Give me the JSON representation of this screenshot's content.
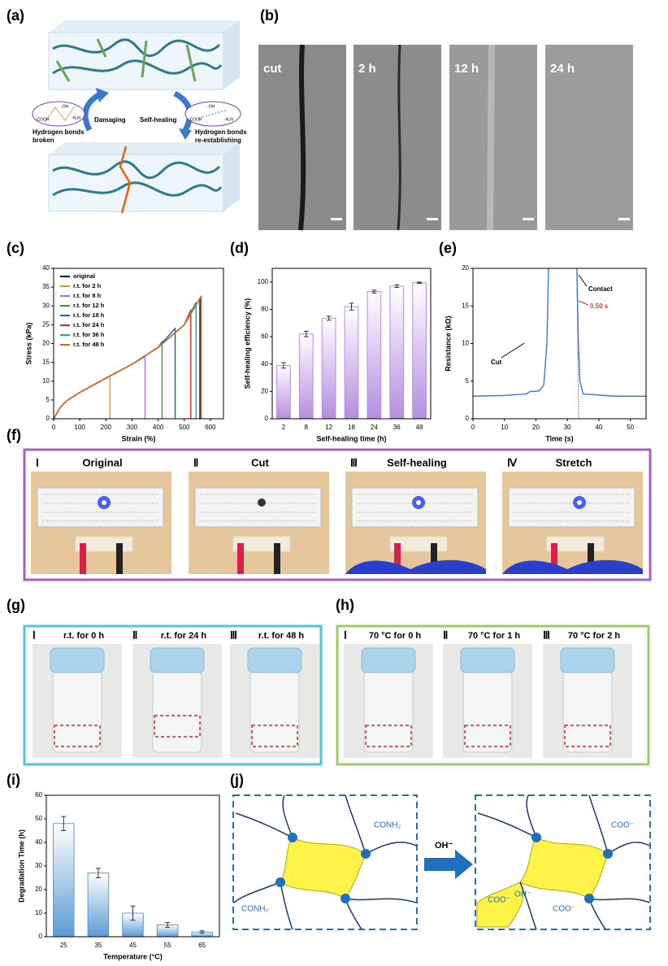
{
  "panels": [
    "(a)",
    "(b)",
    "(c)",
    "(d)",
    "(e)",
    "(f)",
    "(g)",
    "(h)",
    "(i)",
    "(j)"
  ],
  "schematic": {
    "damaging": "Damaging",
    "self_healing": "Self-healing",
    "broken": [
      "Hydrogen bonds",
      "broken"
    ],
    "reestablish": [
      "Hydrogen bonds",
      "re-establishing"
    ],
    "groups": [
      "-OH",
      "-COOH",
      "-H₂N",
      "-OH",
      "-COOH",
      "-H₂N"
    ]
  },
  "micrographs": [
    "cut",
    "2 h",
    "12 h",
    "24 h"
  ],
  "circuit": [
    {
      "numeral": "Ⅰ",
      "label": "Original"
    },
    {
      "numeral": "Ⅱ",
      "label": "Cut"
    },
    {
      "numeral": "Ⅲ",
      "label": "Self-healing"
    },
    {
      "numeral": "Ⅳ",
      "label": "Stretch"
    }
  ],
  "vials_rt": [
    {
      "numeral": "Ⅰ",
      "label": "r.t. for  0 h"
    },
    {
      "numeral": "Ⅱ",
      "label": "r.t. for  24 h"
    },
    {
      "numeral": "Ⅲ",
      "label": "r.t. for  48 h"
    }
  ],
  "vials_heat": [
    {
      "numeral": "Ⅰ",
      "label": "70 °C for  0 h"
    },
    {
      "numeral": "Ⅱ",
      "label": "70 °C for  1 h"
    },
    {
      "numeral": "Ⅲ",
      "label": "70 °C for  2 h"
    }
  ],
  "network": {
    "left": [
      "CONH₂",
      "CONH₂"
    ],
    "arrow": "OH⁻",
    "right": [
      "COO⁻",
      "COO⁻",
      "OH⁻",
      "COO⁻"
    ]
  },
  "chart_data": [
    {
      "type": "line",
      "x_label": "Strain (%)",
      "y_label": "Stress (kPa)",
      "xlim": [
        0,
        650
      ],
      "xticks": [
        0,
        100,
        200,
        300,
        400,
        500,
        600
      ],
      "ylim": [
        0,
        40
      ],
      "yticks": [
        0,
        5,
        10,
        15,
        20,
        25,
        30,
        35,
        40
      ],
      "legend": "upper left",
      "series": [
        {
          "name": "original",
          "color": "#000000",
          "x": [
            0,
            25,
            50,
            100,
            200,
            300,
            400,
            500,
            560,
            560
          ],
          "values": [
            0,
            3,
            4.8,
            7,
            10.8,
            14.5,
            19,
            25,
            32,
            0
          ]
        },
        {
          "name": "r.t. for 2 h",
          "color": "#d4a017",
          "x": [
            0,
            25,
            50,
            100,
            200,
            215,
            215
          ],
          "values": [
            0,
            3,
            4.8,
            7,
            10.8,
            11.4,
            0
          ]
        },
        {
          "name": "r.t. for 8 h",
          "color": "#b36ae2",
          "x": [
            0,
            25,
            50,
            100,
            200,
            300,
            350,
            350
          ],
          "values": [
            0,
            3,
            4.8,
            7,
            10.8,
            14.5,
            16.5,
            0
          ]
        },
        {
          "name": "r.t. for 12 h",
          "color": "#2ca02c",
          "x": [
            0,
            25,
            50,
            100,
            200,
            300,
            400,
            415,
            415
          ],
          "values": [
            0,
            3,
            4.8,
            7,
            10.8,
            14.5,
            19,
            20.5,
            0
          ]
        },
        {
          "name": "r.t. for 18 h",
          "color": "#1f5fbf",
          "x": [
            0,
            25,
            50,
            100,
            200,
            300,
            400,
            465,
            465
          ],
          "values": [
            0,
            3,
            4.8,
            7,
            10.8,
            14.5,
            19,
            24,
            0
          ]
        },
        {
          "name": "r.t. for 24 h",
          "color": "#d62728",
          "x": [
            0,
            25,
            50,
            100,
            200,
            300,
            400,
            500,
            525,
            525
          ],
          "values": [
            0,
            3,
            4.8,
            7,
            10.8,
            14.5,
            19,
            25,
            29,
            0
          ]
        },
        {
          "name": "r.t. for 36 h",
          "color": "#17a2b8",
          "x": [
            0,
            25,
            50,
            100,
            200,
            300,
            400,
            500,
            545,
            545
          ],
          "values": [
            0,
            3,
            4.8,
            7,
            10.8,
            14.5,
            19,
            25,
            31,
            0
          ]
        },
        {
          "name": "r.t. for 48 h",
          "color": "#e8630a",
          "x": [
            0,
            25,
            50,
            100,
            200,
            300,
            400,
            500,
            565,
            565
          ],
          "values": [
            0,
            3,
            4.8,
            7,
            10.8,
            14.5,
            19,
            25,
            32.5,
            0
          ]
        }
      ]
    },
    {
      "type": "bar",
      "x_label": "Self-healing time (h)",
      "y_label": "Self-healing efficiency (%)",
      "categories": [
        "2",
        "8",
        "12",
        "18",
        "24",
        "36",
        "48"
      ],
      "values": [
        39,
        62,
        73.5,
        82,
        93,
        97,
        99.5
      ],
      "errors": [
        2,
        2,
        1.5,
        2.5,
        1,
        1,
        0.5
      ],
      "color": "#b58ee0",
      "ylim": [
        0,
        110
      ],
      "yticks": [
        0,
        20,
        40,
        60,
        80,
        100
      ]
    },
    {
      "type": "line",
      "x_label": "Time (s)",
      "y_label": "Resistance (kΩ)",
      "color": "#3a78d4",
      "x": [
        0,
        10,
        17,
        18,
        21,
        22.5,
        23.5,
        24,
        28,
        33,
        33.5,
        34,
        35,
        45,
        55
      ],
      "values": [
        3,
        3.1,
        3.3,
        3.6,
        3.7,
        4.5,
        10,
        20,
        null,
        20,
        10,
        5,
        3.3,
        3,
        3
      ],
      "xlim": [
        0,
        55
      ],
      "xticks": [
        0,
        10,
        20,
        30,
        40,
        50
      ],
      "ylim": [
        0,
        20
      ],
      "yticks": [
        0,
        5,
        10,
        15,
        20
      ],
      "annotations": [
        "Cut",
        "Contact",
        "0.50 s"
      ]
    },
    {
      "type": "bar",
      "x_label": "Temperature (°C)",
      "y_label": "Degradation Time (h)",
      "categories": [
        "25",
        "35",
        "45",
        "55",
        "65"
      ],
      "values": [
        48,
        27,
        10,
        5,
        2
      ],
      "errors": [
        3,
        2,
        3,
        1,
        0.5
      ],
      "color": "#5b9bd5",
      "ylim": [
        0,
        60
      ],
      "yticks": [
        0,
        10,
        20,
        30,
        40,
        50,
        60
      ]
    }
  ]
}
